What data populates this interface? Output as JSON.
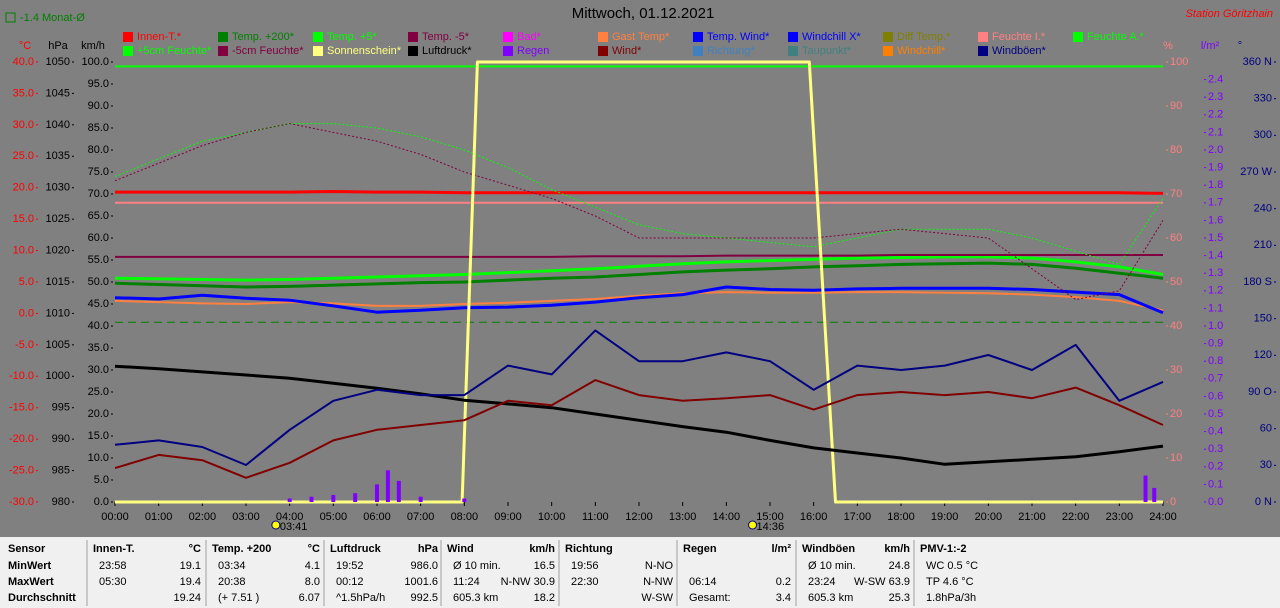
{
  "chart_data": {
    "type": "line",
    "title": "Mittwoch, 01.12.2021",
    "station": "Station Göritzhain",
    "month_avg": {
      "label": "-1.4 Monat-Ø",
      "value": -1.4,
      "color": "#008000"
    },
    "markers": [
      "03:41",
      "14:36"
    ],
    "x": [
      0,
      1,
      2,
      3,
      4,
      5,
      6,
      7,
      8,
      9,
      10,
      11,
      12,
      13,
      14,
      15,
      16,
      17,
      18,
      19,
      20,
      21,
      22,
      23,
      24
    ],
    "xlim": [
      0,
      24
    ],
    "xticks": [
      {
        "value": 0,
        "label": "00:00"
      },
      {
        "value": 1,
        "label": "01:00"
      },
      {
        "value": 2,
        "label": "02:00"
      },
      {
        "value": 3,
        "label": "03:00"
      },
      {
        "value": 4,
        "label": "04:00"
      },
      {
        "value": 5,
        "label": "05:00"
      },
      {
        "value": 6,
        "label": "06:00"
      },
      {
        "value": 7,
        "label": "07:00"
      },
      {
        "value": 8,
        "label": "08:00"
      },
      {
        "value": 9,
        "label": "09:00"
      },
      {
        "value": 10,
        "label": "10:00"
      },
      {
        "value": 11,
        "label": "11:00"
      },
      {
        "value": 12,
        "label": "12:00"
      },
      {
        "value": 13,
        "label": "13:00"
      },
      {
        "value": 14,
        "label": "14:00"
      },
      {
        "value": 15,
        "label": "15:00"
      },
      {
        "value": 16,
        "label": "16:00"
      },
      {
        "value": 17,
        "label": "17:00"
      },
      {
        "value": 18,
        "label": "18:00"
      },
      {
        "value": 19,
        "label": "19:00"
      },
      {
        "value": 20,
        "label": "20:00"
      },
      {
        "value": 21,
        "label": "21:00"
      },
      {
        "value": 22,
        "label": "22:00"
      },
      {
        "value": 23,
        "label": "23:00"
      },
      {
        "value": 24,
        "label": "24:00"
      }
    ],
    "axes": {
      "temp": {
        "label": "°C",
        "color": "#ff0000",
        "lim": [
          -30,
          40
        ],
        "ticks": [
          {
            "value": 40,
            "label": "40.0"
          },
          {
            "value": 35,
            "label": "35.0"
          },
          {
            "value": 30,
            "label": "30.0"
          },
          {
            "value": 25,
            "label": "25.0"
          },
          {
            "value": 20,
            "label": "20.0"
          },
          {
            "value": 15,
            "label": "15.0"
          },
          {
            "value": 10,
            "label": "10.0"
          },
          {
            "value": 5,
            "label": "5.0"
          },
          {
            "value": 0,
            "label": "0.0"
          },
          {
            "value": -5,
            "label": "-5.0"
          },
          {
            "value": -10,
            "label": "-10.0"
          },
          {
            "value": -15,
            "label": "-15.0"
          },
          {
            "value": -20,
            "label": "-20.0"
          },
          {
            "value": -25,
            "label": "-25.0"
          },
          {
            "value": -30,
            "label": "-30.0"
          }
        ]
      },
      "hpa": {
        "label": "hPa",
        "color": "#000000",
        "lim": [
          980,
          1050
        ],
        "ticks": [
          1050,
          1045,
          1040,
          1035,
          1030,
          1025,
          1020,
          1015,
          1010,
          1005,
          1000,
          995,
          990,
          985,
          980
        ]
      },
      "kmh": {
        "label": "km/h",
        "color": "#000000",
        "lim": [
          0,
          100
        ],
        "ticks": [
          {
            "value": 100,
            "label": "100.0"
          },
          {
            "value": 95,
            "label": "95.0"
          },
          {
            "value": 90,
            "label": "90.0"
          },
          {
            "value": 85,
            "label": "85.0"
          },
          {
            "value": 80,
            "label": "80.0"
          },
          {
            "value": 75,
            "label": "75.0"
          },
          {
            "value": 70,
            "label": "70.0"
          },
          {
            "value": 65,
            "label": "65.0"
          },
          {
            "value": 60,
            "label": "60.0"
          },
          {
            "value": 55,
            "label": "55.0"
          },
          {
            "value": 50,
            "label": "50.0"
          },
          {
            "value": 45,
            "label": "45.0"
          },
          {
            "value": 40,
            "label": "40.0"
          },
          {
            "value": 35,
            "label": "35.0"
          },
          {
            "value": 30,
            "label": "30.0"
          },
          {
            "value": 25,
            "label": "25.0"
          },
          {
            "value": 20,
            "label": "20.0"
          },
          {
            "value": 15,
            "label": "15.0"
          },
          {
            "value": 10,
            "label": "10.0"
          },
          {
            "value": 5,
            "label": "5.0"
          },
          {
            "value": 0,
            "label": "0.0"
          }
        ]
      },
      "pct": {
        "label": "%",
        "color": "#ff8080",
        "lim": [
          0,
          100
        ],
        "ticks": [
          100,
          90,
          80,
          70,
          60,
          50,
          40,
          30,
          20,
          10,
          0
        ]
      },
      "rain": {
        "label": "l/m²",
        "color": "#8000ff",
        "lim": [
          0,
          2.5
        ],
        "ticks": [
          2.4,
          2.3,
          2.2,
          2.1,
          {
            "value": 2,
            "label": "2.0"
          },
          1.9,
          1.8,
          1.7,
          1.6,
          1.5,
          1.4,
          1.3,
          1.2,
          1.1,
          {
            "value": 1,
            "label": "1.0"
          },
          0.9,
          0.8,
          0.7,
          0.6,
          0.5,
          0.4,
          0.3,
          0.2,
          0.1,
          {
            "value": 0,
            "label": "0.0"
          }
        ]
      },
      "dir": {
        "label": "°",
        "color": "#000080",
        "lim": [
          0,
          360
        ],
        "ticks": [
          {
            "value": 360,
            "label": "360 N"
          },
          330,
          300,
          {
            "value": 270,
            "label": "270 W"
          },
          240,
          210,
          {
            "value": 180,
            "label": "180 S"
          },
          150,
          120,
          {
            "value": 90,
            "label": "90 O"
          },
          60,
          30,
          {
            "value": 0,
            "label": "0 N"
          }
        ]
      }
    },
    "series": [
      {
        "name": "Innen-T.*",
        "color": "#ff0000",
        "axis": "temp",
        "width": 3,
        "values": [
          19.3,
          19.3,
          19.3,
          19.3,
          19.3,
          19.4,
          19.3,
          19.3,
          19.2,
          19.2,
          19.2,
          19.2,
          19.2,
          19.2,
          19.2,
          19.2,
          19.2,
          19.2,
          19.2,
          19.2,
          19.2,
          19.2,
          19.2,
          19.2,
          19.1
        ]
      },
      {
        "name": "Temp. +200*",
        "color": "#008000",
        "axis": "temp",
        "width": 3,
        "values": [
          4.8,
          4.6,
          4.4,
          4.2,
          4.3,
          4.5,
          4.7,
          4.9,
          5.0,
          5.3,
          5.6,
          5.8,
          6.2,
          6.6,
          6.9,
          7.1,
          7.4,
          7.6,
          7.8,
          7.9,
          8.0,
          7.8,
          7.2,
          6.4,
          5.6
        ]
      },
      {
        "name": "Temp. +5*",
        "color": "#00ff00",
        "axis": "temp",
        "width": 3,
        "values": [
          5.6,
          5.5,
          5.4,
          5.3,
          5.4,
          5.6,
          5.8,
          6.0,
          6.2,
          6.5,
          6.8,
          7.1,
          7.5,
          7.9,
          8.2,
          8.4,
          8.6,
          8.8,
          8.9,
          9.0,
          9.0,
          8.8,
          8.2,
          7.4,
          6.2
        ]
      },
      {
        "name": "Temp. -5*",
        "color": "#800040",
        "axis": "temp",
        "width": 2,
        "values": [
          9.0,
          9.0,
          9.0,
          9.0,
          9.0,
          9.0,
          9.0,
          9.0,
          9.0,
          9.0,
          9.0,
          9.1,
          9.1,
          9.1,
          9.2,
          9.2,
          9.2,
          9.2,
          9.3,
          9.3,
          9.3,
          9.3,
          9.3,
          9.3,
          9.3
        ]
      },
      {
        "name": "Bad*",
        "color": "#ff00ff"
      },
      {
        "name": "Gast Temp*",
        "color": "#ff8040",
        "axis": "temp",
        "width": 2,
        "values": [
          2.0,
          1.8,
          1.6,
          1.5,
          1.8,
          1.6,
          1.2,
          1.2,
          1.5,
          1.7,
          2.0,
          2.3,
          2.8,
          3.2,
          3.4,
          3.3,
          3.3,
          3.4,
          3.4,
          3.3,
          3.2,
          3.0,
          2.6,
          2.0,
          0.5
        ]
      },
      {
        "name": "Temp. Wind*",
        "color": "#0000ff",
        "axis": "temp",
        "width": 3,
        "values": [
          2.5,
          2.3,
          2.9,
          2.4,
          2.1,
          1.2,
          0.2,
          0.5,
          0.9,
          1.0,
          1.3,
          1.8,
          2.5,
          3.0,
          4.2,
          3.8,
          3.7,
          3.9,
          4.0,
          4.0,
          4.0,
          3.8,
          3.4,
          3.0,
          0.1
        ]
      },
      {
        "name": "Windchill X*",
        "color": "#0000ff"
      },
      {
        "name": "Diff Temp.*",
        "color": "#808000"
      },
      {
        "name": "Feuchte I.*",
        "color": "#ff8080",
        "axis": "pct",
        "width": 2,
        "values": [
          68,
          68,
          68,
          68,
          68,
          68,
          68,
          68,
          68,
          68,
          68,
          68,
          68,
          68,
          68,
          68,
          68,
          68,
          68,
          68,
          68,
          68,
          68,
          68,
          68
        ]
      },
      {
        "name": "Feuchte A.*",
        "color": "#00ff00",
        "axis": "pct",
        "width": 2,
        "values": [
          99,
          99,
          99,
          99,
          99,
          99,
          99,
          99,
          99,
          99,
          99,
          99,
          99,
          99,
          99,
          99,
          99,
          99,
          99,
          99,
          99,
          99,
          99,
          99,
          99
        ]
      },
      {
        "name": "+5cm Feuchte*",
        "color": "#00ff00",
        "axis": "pct",
        "width": 1,
        "style": "dotted",
        "values": [
          74,
          78,
          82,
          84,
          86,
          86,
          85,
          83,
          80,
          76,
          71,
          67,
          63,
          61,
          60,
          59,
          58,
          60,
          62,
          62,
          62,
          60,
          57,
          54,
          69
        ]
      },
      {
        "name": "-5cm Feuchte*",
        "color": "#800040",
        "axis": "pct",
        "width": 1,
        "style": "dotted",
        "values": [
          73,
          77,
          81,
          84,
          86,
          84,
          82,
          79,
          75,
          72,
          69,
          65,
          60,
          60,
          60,
          60,
          60,
          61,
          62,
          61,
          60,
          53,
          46,
          48,
          64
        ]
      },
      {
        "name": "Sonnenschein*",
        "color": "#ffff80",
        "axis": "pct",
        "width": 3,
        "x": [
          0,
          7.95,
          8.3,
          15.9,
          16.5,
          17,
          24
        ],
        "values": [
          0,
          0,
          100,
          100,
          0,
          0,
          0
        ]
      },
      {
        "name": "Luftdruck*",
        "color": "#000000",
        "axis": "hpa",
        "width": 3,
        "values": [
          1001.6,
          1001.2,
          1000.7,
          1000.2,
          999.7,
          998.9,
          998.1,
          997.2,
          996.2,
          995.6,
          995.0,
          994.0,
          993.0,
          992.0,
          991.1,
          989.8,
          988.6,
          987.8,
          987.0,
          986.0,
          986.4,
          986.8,
          987.2,
          988.0,
          988.9
        ]
      },
      {
        "name": "Regen",
        "color": "#8000ff",
        "axis": "rain",
        "kind": "bars",
        "x": [
          4,
          4.5,
          5,
          5.5,
          6,
          6.25,
          6.5,
          7,
          8,
          23.6,
          23.8
        ],
        "values": [
          0.02,
          0.03,
          0.04,
          0.05,
          0.1,
          0.18,
          0.12,
          0.03,
          0.02,
          0.15,
          0.08
        ]
      },
      {
        "name": "Wind*",
        "color": "#800000",
        "axis": "kmh",
        "width": 2,
        "values": [
          7.7,
          10.7,
          9.5,
          5.5,
          8.9,
          14,
          16.4,
          17.5,
          18.6,
          23,
          22,
          27.7,
          24.3,
          23,
          23.6,
          24.3,
          21,
          24.3,
          25,
          24.3,
          25,
          23.6,
          26,
          22,
          17.5
        ]
      },
      {
        "name": "Richtung*",
        "color": "#4080c0"
      },
      {
        "name": "Taupunkt*",
        "color": "#408080"
      },
      {
        "name": "Windchill*",
        "color": "#ff8000"
      },
      {
        "name": "Windböen*",
        "color": "#000080",
        "axis": "kmh",
        "width": 2,
        "values": [
          13,
          14,
          12.5,
          8.4,
          16.4,
          23,
          25.5,
          24.3,
          24.3,
          31,
          29,
          39,
          32,
          32,
          34,
          32,
          25.5,
          31,
          30,
          31,
          33.4,
          30,
          35.7,
          23,
          27.3
        ]
      }
    ]
  },
  "table": {
    "columns": [
      {
        "title": "Sensor",
        "rows": [
          {
            "left": "MinWert"
          },
          {
            "left": "MaxWert"
          },
          {
            "left": "Durchschnitt"
          }
        ]
      },
      {
        "title": "Innen-T.",
        "unit": "°C",
        "rows": [
          {
            "left": "23:58",
            "right": "19.1"
          },
          {
            "left": "05:30",
            "right": "19.4"
          },
          {
            "right": "19.24"
          }
        ]
      },
      {
        "title": "Temp. +200",
        "unit": "°C",
        "rows": [
          {
            "left": "03:34",
            "right": "4.1"
          },
          {
            "left": "20:38",
            "right": "8.0"
          },
          {
            "left": "(+ 7.51 )",
            "right": "6.07"
          }
        ]
      },
      {
        "title": "Luftdruck",
        "unit": "hPa",
        "rows": [
          {
            "left": "19:52",
            "right": "986.0"
          },
          {
            "left": "00:12",
            "right": "1001.6"
          },
          {
            "left": "^1.5hPa/h",
            "right": "992.5"
          }
        ]
      },
      {
        "title": "Wind",
        "unit": "km/h",
        "rows": [
          {
            "left": "Ø 10 min.",
            "right": "16.5"
          },
          {
            "left": "11:24",
            "right": "N-NW 30.9"
          },
          {
            "left": "605.3 km",
            "right": "18.2"
          }
        ]
      },
      {
        "title": "Richtung",
        "rows": [
          {
            "left": "19:56",
            "right": "N-NO"
          },
          {
            "left": "22:30",
            "right": "N-NW"
          },
          {
            "right": "W-SW"
          }
        ]
      },
      {
        "title": "Regen",
        "unit": "l/m²",
        "rows": [
          {},
          {
            "left": "06:14",
            "right": "0.2"
          },
          {
            "left": "Gesamt:",
            "right": "3.4"
          }
        ]
      },
      {
        "title": "Windböen",
        "unit": "km/h",
        "rows": [
          {
            "left": "Ø 10 min.",
            "right": "24.8"
          },
          {
            "left": "23:24",
            "right": "W-SW 63.9"
          },
          {
            "left": "605.3 km",
            "right": "25.3"
          }
        ]
      },
      {
        "title": "PMV-1:-2",
        "rows": [
          {
            "left": "WC 0.5 °C"
          },
          {
            "left": "TP 4.6 °C"
          },
          {
            "left": "1.8hPa/3h"
          }
        ]
      }
    ]
  }
}
